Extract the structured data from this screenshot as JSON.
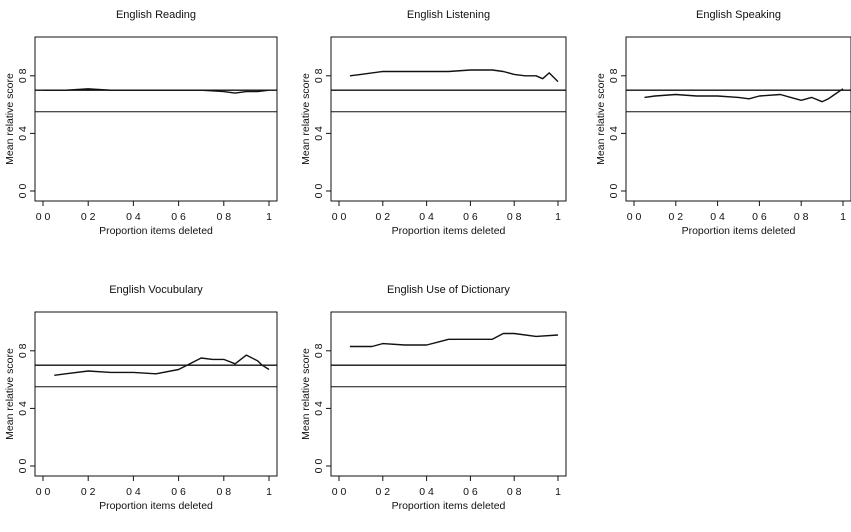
{
  "colors": {
    "line": "#111111",
    "background": "#ffffff"
  },
  "chart_data": [
    {
      "type": "line",
      "title": "English Reading",
      "xlabel": "Proportion items deleted",
      "ylabel": "Mean relative score",
      "xlim": [
        0,
        1
      ],
      "ylim": [
        0,
        1
      ],
      "xticks": [
        "0 0",
        "0 2",
        "0 4",
        "0 6",
        "0 8",
        "1"
      ],
      "yticks": [
        "0 0",
        "0 4",
        "0 8"
      ],
      "grid": false,
      "hlines": [
        0.7,
        0.55
      ],
      "series": [
        {
          "x": [
            0,
            0.1,
            0.2,
            0.3,
            0.4,
            0.5,
            0.6,
            0.7,
            0.8,
            0.85,
            0.9,
            0.95,
            1.0
          ],
          "values": [
            0.7,
            0.7,
            0.71,
            0.7,
            0.7,
            0.7,
            0.7,
            0.7,
            0.69,
            0.68,
            0.69,
            0.69,
            0.7
          ]
        }
      ]
    },
    {
      "type": "line",
      "title": "English Listening",
      "xlabel": "Proportion items deleted",
      "ylabel": "Mean relative score",
      "xlim": [
        0,
        1
      ],
      "ylim": [
        0,
        1
      ],
      "xticks": [
        "0 0",
        "0 2",
        "0 4",
        "0 6",
        "0 8",
        "1"
      ],
      "yticks": [
        "0 0",
        "0 4",
        "0 8"
      ],
      "grid": false,
      "hlines": [
        0.7,
        0.55
      ],
      "series": [
        {
          "x": [
            0.05,
            0.1,
            0.2,
            0.3,
            0.4,
            0.5,
            0.6,
            0.7,
            0.75,
            0.8,
            0.85,
            0.9,
            0.93,
            0.96,
            1.0
          ],
          "values": [
            0.8,
            0.81,
            0.83,
            0.83,
            0.83,
            0.83,
            0.84,
            0.84,
            0.83,
            0.81,
            0.8,
            0.8,
            0.78,
            0.82,
            0.76
          ]
        }
      ]
    },
    {
      "type": "line",
      "title": "English Speaking",
      "xlabel": "Proportion items deleted",
      "ylabel": "Mean relative score",
      "xlim": [
        0,
        1
      ],
      "ylim": [
        0,
        1
      ],
      "xticks": [
        "0 0",
        "0 2",
        "0 4",
        "0 6",
        "0 8",
        "1"
      ],
      "yticks": [
        "0 0",
        "0 4",
        "0 8"
      ],
      "grid": false,
      "hlines": [
        0.7,
        0.55
      ],
      "series": [
        {
          "x": [
            0.05,
            0.1,
            0.2,
            0.3,
            0.4,
            0.5,
            0.55,
            0.6,
            0.7,
            0.75,
            0.8,
            0.85,
            0.9,
            0.93,
            0.96,
            1.0
          ],
          "values": [
            0.65,
            0.66,
            0.67,
            0.66,
            0.66,
            0.65,
            0.64,
            0.66,
            0.67,
            0.65,
            0.63,
            0.65,
            0.62,
            0.64,
            0.67,
            0.71
          ]
        }
      ]
    },
    {
      "type": "line",
      "title": "English Vocubulary",
      "xlabel": "Proportion items deleted",
      "ylabel": "Mean relative score",
      "xlim": [
        0,
        1
      ],
      "ylim": [
        0,
        1
      ],
      "xticks": [
        "0 0",
        "0 2",
        "0 4",
        "0 6",
        "0 8",
        "1"
      ],
      "yticks": [
        "0 0",
        "0 4",
        "0 8"
      ],
      "grid": false,
      "hlines": [
        0.7,
        0.55
      ],
      "series": [
        {
          "x": [
            0.05,
            0.1,
            0.2,
            0.3,
            0.4,
            0.5,
            0.6,
            0.65,
            0.7,
            0.75,
            0.8,
            0.85,
            0.9,
            0.95,
            0.97,
            1.0
          ],
          "values": [
            0.63,
            0.64,
            0.66,
            0.65,
            0.65,
            0.64,
            0.67,
            0.71,
            0.75,
            0.74,
            0.74,
            0.71,
            0.77,
            0.73,
            0.7,
            0.67
          ]
        }
      ]
    },
    {
      "type": "line",
      "title": "English Use of Dictionary",
      "xlabel": "Proportion items deleted",
      "ylabel": "Mean relative score",
      "xlim": [
        0,
        1
      ],
      "ylim": [
        0,
        1
      ],
      "xticks": [
        "0 0",
        "0 2",
        "0 4",
        "0 6",
        "0 8",
        "1"
      ],
      "yticks": [
        "0 0",
        "0 4",
        "0 8"
      ],
      "grid": false,
      "hlines": [
        0.7,
        0.55
      ],
      "series": [
        {
          "x": [
            0.05,
            0.15,
            0.2,
            0.3,
            0.4,
            0.45,
            0.5,
            0.6,
            0.7,
            0.75,
            0.8,
            0.9,
            1.0
          ],
          "values": [
            0.83,
            0.83,
            0.85,
            0.84,
            0.84,
            0.86,
            0.88,
            0.88,
            0.88,
            0.92,
            0.92,
            0.9,
            0.91
          ]
        }
      ]
    }
  ]
}
